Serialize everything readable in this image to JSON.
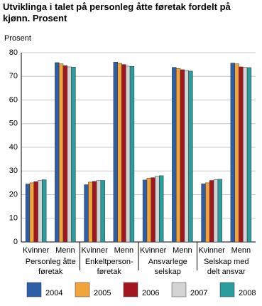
{
  "chart_data": {
    "type": "bar",
    "title": "Utviklinga i talet på personleg åtte føretak fordelt på kjønn. Prosent",
    "y_label": "Prosent",
    "categories": [
      "Kvinner",
      "Menn",
      "Kvinner",
      "Menn",
      "Kvinner",
      "Menn",
      "Kvinner",
      "Menn"
    ],
    "groups": [
      [
        "Personleg åtte",
        "føretak"
      ],
      [
        "Enkeltperson-",
        "føretak"
      ],
      [
        "Ansvarlege",
        "selskap"
      ],
      [
        "Selskap med",
        "delt ansvar"
      ]
    ],
    "series": [
      {
        "name": "2004",
        "color": "#2d5ea8",
        "values": [
          24.5,
          75.8,
          24.2,
          76.0,
          26.2,
          73.8,
          24.6,
          75.6
        ]
      },
      {
        "name": "2005",
        "color": "#f2a33a",
        "values": [
          25.0,
          75.3,
          25.3,
          75.5,
          27.0,
          73.3,
          25.0,
          75.3
        ]
      },
      {
        "name": "2006",
        "color": "#a3161f",
        "values": [
          25.5,
          74.5,
          25.6,
          75.0,
          27.2,
          72.8,
          26.0,
          74.0
        ]
      },
      {
        "name": "2007",
        "color": "#d4d4d4",
        "values": [
          26.0,
          74.0,
          26.0,
          74.3,
          27.8,
          72.5,
          26.4,
          73.8
        ]
      },
      {
        "name": "2008",
        "color": "#2a9d9d",
        "values": [
          26.3,
          73.9,
          26.0,
          74.2,
          28.0,
          72.2,
          26.5,
          73.7
        ]
      }
    ],
    "ylim": [
      0,
      80
    ],
    "yticks": [
      0,
      10,
      20,
      30,
      40,
      50,
      60,
      70,
      80
    ],
    "grid": true
  }
}
